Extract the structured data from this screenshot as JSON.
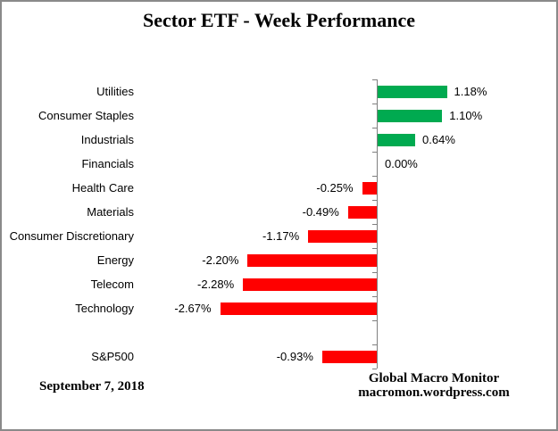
{
  "title": "Sector ETF - Week Performance",
  "footer": {
    "date": "September 7, 2018",
    "attribution_line1": "Global Macro Monitor",
    "attribution_line2": "macromon.wordpress.com"
  },
  "colors": {
    "positive_bar": "#00AA50",
    "negative_bar": "#FF0000",
    "axis": "#808080",
    "frame_border": "#8A8A8A",
    "text": "#000000"
  },
  "chart_data": {
    "type": "bar",
    "orientation": "horizontal",
    "title": "Sector ETF - Week Performance",
    "xlabel": "",
    "ylabel": "",
    "xlim": [
      -2.67,
      1.18
    ],
    "grid": false,
    "legend": false,
    "unit": "%",
    "categories": [
      "Utilities",
      "Consumer Staples",
      "Industrials",
      "Financials",
      "Health Care",
      "Materials",
      "Consumer Discretionary",
      "Energy",
      "Telecom",
      "Technology",
      "",
      "S&P500"
    ],
    "values": [
      1.18,
      1.1,
      0.64,
      0.0,
      -0.25,
      -0.49,
      -1.17,
      -2.2,
      -2.28,
      -2.67,
      null,
      -0.93
    ],
    "value_labels": [
      "1.18%",
      "1.10%",
      "0.64%",
      "0.00%",
      "-0.25%",
      "-0.49%",
      "-1.17%",
      "-2.20%",
      "-2.28%",
      "-2.67%",
      "",
      "-0.93%"
    ]
  }
}
